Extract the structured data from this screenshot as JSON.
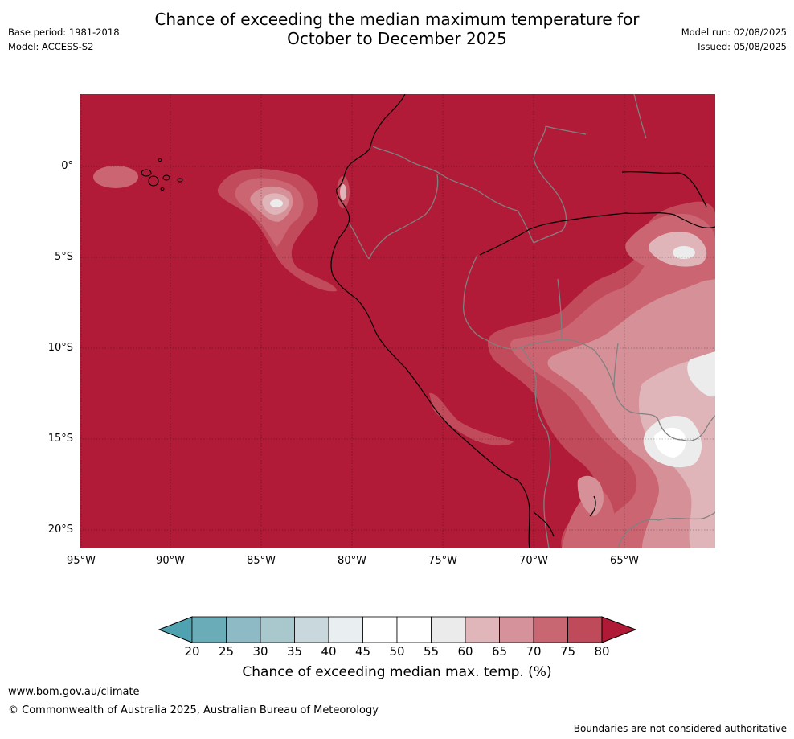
{
  "header": {
    "title_line1": "Chance of exceeding the median maximum temperature for",
    "title_line2": "October to December 2025",
    "base_period": "Base period: 1981-2018",
    "model": "Model: ACCESS-S2",
    "model_run": "Model run: 02/08/2025",
    "issued": "Issued: 05/08/2025"
  },
  "map": {
    "lat_labels": [
      "0°",
      "5°S",
      "10°S",
      "15°S",
      "20°S"
    ],
    "lon_labels": [
      "95°W",
      "90°W",
      "85°W",
      "80°W",
      "75°W",
      "70°W",
      "65°W"
    ],
    "colors": {
      "c80": "#b11b38",
      "c75": "#c24b5b",
      "c70": "#cc6572",
      "c65": "#d69098",
      "c60": "#e0b5b9",
      "c55": "#ececec",
      "c50": "#ffffff",
      "country_border": "#808080",
      "coast": "#000000"
    }
  },
  "colorbar": {
    "ticks": [
      "20",
      "25",
      "30",
      "35",
      "40",
      "45",
      "50",
      "55",
      "60",
      "65",
      "70",
      "75",
      "80"
    ],
    "colors": [
      "#6aadb9",
      "#8dbac4",
      "#a8c8cd",
      "#c8d8dc",
      "#e9eff1",
      "#ffffff",
      "#ffffff",
      "#ebebeb",
      "#e0b6ba",
      "#d6929a",
      "#c86672",
      "#bf4a5a"
    ],
    "low_extend_color": "#4fa3b0",
    "high_extend_color": "#b01a37",
    "label": "Chance of exceeding median max. temp. (%)"
  },
  "footer": {
    "url": "www.bom.gov.au/climate",
    "copyright": "© Commonwealth of Australia 2025, Australian Bureau of Meteorology",
    "disclaimer": "Boundaries are not considered authoritative"
  }
}
